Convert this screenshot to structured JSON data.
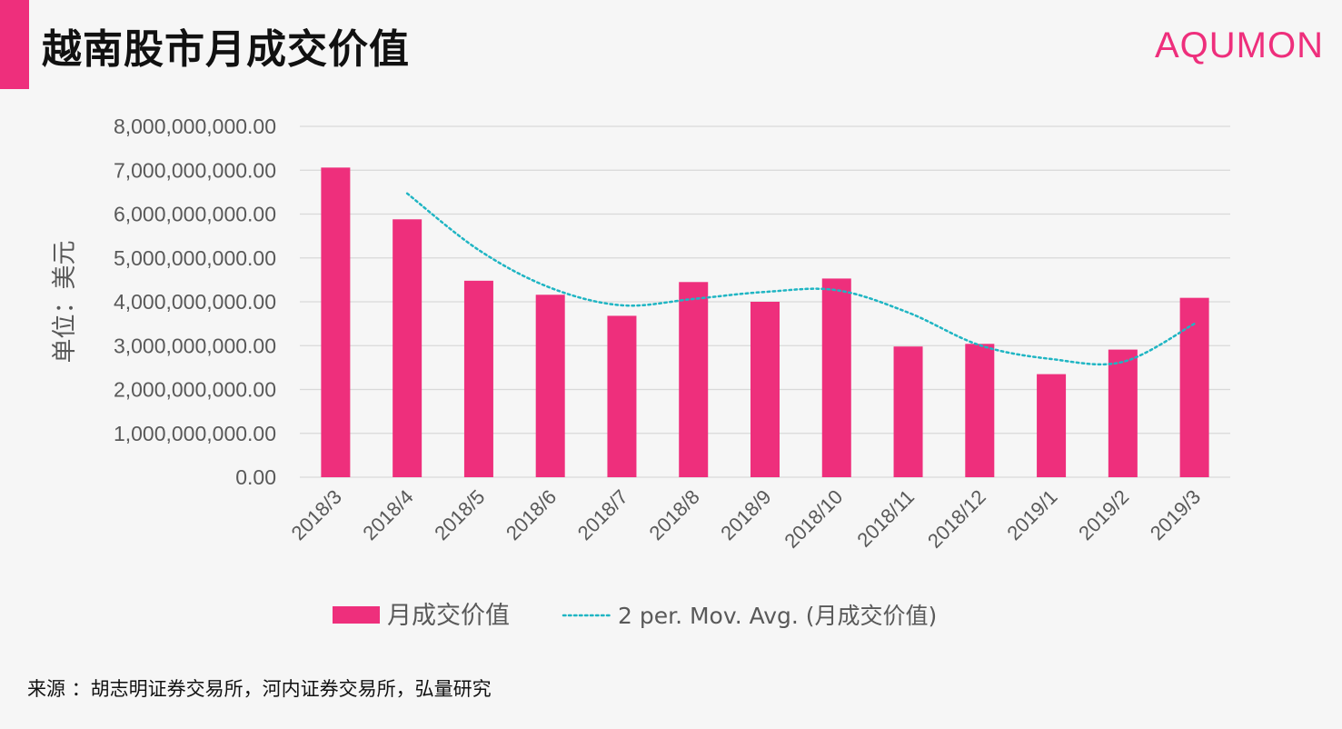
{
  "header": {
    "title": "越南股市月成交价值",
    "logo": "AQUMON"
  },
  "footer": {
    "source": "来源 ：胡志明证券交易所，河内证券交易所，弘量研究"
  },
  "colors": {
    "accent": "#ee2f7c",
    "moving_average": "#1fb5c3",
    "grid": "#d9d9d9",
    "axis_text": "#595959"
  },
  "chart_data": {
    "type": "bar",
    "title": "",
    "xlabel": "",
    "ylabel": "单位：美元",
    "ylim": [
      0,
      8000000000
    ],
    "y_ticks": [
      "0.00",
      "1,000,000,000.00",
      "2,000,000,000.00",
      "3,000,000,000.00",
      "4,000,000,000.00",
      "5,000,000,000.00",
      "6,000,000,000.00",
      "7,000,000,000.00",
      "8,000,000,000.00"
    ],
    "grid": true,
    "legend_position": "bottom",
    "categories": [
      "2018/3",
      "2018/4",
      "2018/5",
      "2018/6",
      "2018/7",
      "2018/8",
      "2018/9",
      "2018/10",
      "2018/11",
      "2018/12",
      "2019/1",
      "2019/2",
      "2019/3"
    ],
    "series": [
      {
        "name": "月成交价值",
        "type": "bar",
        "values": [
          7060000000,
          5880000000,
          4480000000,
          4160000000,
          3680000000,
          4450000000,
          4000000000,
          4530000000,
          2980000000,
          3040000000,
          2350000000,
          2910000000,
          4090000000
        ]
      },
      {
        "name": "2 per. Mov. Avg. (月成交价值)",
        "type": "line",
        "style": "dotted",
        "values": [
          null,
          6470000000,
          5180000000,
          4320000000,
          3920000000,
          4065000000,
          4225000000,
          4265000000,
          3755000000,
          3010000000,
          2695000000,
          2630000000,
          3500000000
        ]
      }
    ]
  }
}
